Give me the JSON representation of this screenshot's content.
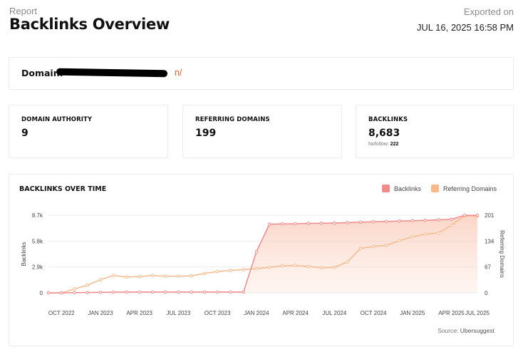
{
  "header": {
    "report_label": "Report",
    "title": "Backlinks Overview",
    "exported_label": "Exported on",
    "exported_date": "JUL 16, 2025 16:58 PM"
  },
  "domain": {
    "label": "Domain:",
    "value_visible_suffix": "n/"
  },
  "metrics": {
    "domain_authority": {
      "label": "DOMAIN AUTHORITY",
      "value": "9"
    },
    "referring_domains": {
      "label": "REFERRING DOMAINS",
      "value": "199"
    },
    "backlinks": {
      "label": "BACKLINKS",
      "value": "8,683",
      "nofollow_label": "Nofollow:",
      "nofollow_value": "222"
    }
  },
  "colors": {
    "backlinks": "#f28a8a",
    "referring_domains": "#f7b98a",
    "accent": "#e85c2c"
  },
  "chart_data": {
    "type": "line",
    "title": "BACKLINKS OVER TIME",
    "legend_placement": "top-right",
    "grid": true,
    "x_tick_labels": [
      "OCT 2022",
      "JAN 2023",
      "APR 2023",
      "JUL 2023",
      "OCT 2023",
      "JAN 2024",
      "APR 2024",
      "JUL 2024",
      "OCT 2024",
      "JAN 2025",
      "APR 2025",
      "JUL 2025"
    ],
    "x": [
      "2022-09",
      "2022-10",
      "2022-11",
      "2022-12",
      "2023-01",
      "2023-02",
      "2023-03",
      "2023-04",
      "2023-05",
      "2023-06",
      "2023-07",
      "2023-08",
      "2023-09",
      "2023-10",
      "2023-11",
      "2023-12",
      "2024-01",
      "2024-02",
      "2024-03",
      "2024-04",
      "2024-05",
      "2024-06",
      "2024-07",
      "2024-08",
      "2024-09",
      "2024-10",
      "2024-11",
      "2024-12",
      "2025-01",
      "2025-02",
      "2025-03",
      "2025-04",
      "2025-05",
      "2025-06"
    ],
    "left_axis": {
      "label": "Backlinks",
      "ticks": [
        "0",
        "2.9k",
        "5.8k",
        "8.7k"
      ],
      "tick_values": [
        0,
        2900,
        5800,
        8700
      ],
      "range": [
        0,
        8700
      ]
    },
    "right_axis": {
      "label": "Referring Domains",
      "ticks": [
        "0",
        "67",
        "134",
        "201"
      ],
      "tick_values": [
        0,
        67,
        134,
        201
      ],
      "range": [
        0,
        201
      ]
    },
    "series": [
      {
        "name": "Backlinks",
        "axis": "left",
        "values": [
          0,
          0,
          20,
          40,
          60,
          80,
          90,
          90,
          90,
          90,
          90,
          90,
          90,
          90,
          90,
          90,
          4600,
          7700,
          7720,
          7740,
          7780,
          7800,
          7820,
          7860,
          7920,
          7960,
          8000,
          8040,
          8080,
          8120,
          8180,
          8240,
          8683,
          8683
        ]
      },
      {
        "name": "Referring Domains",
        "axis": "left-scaled",
        "values": [
          0,
          0,
          10,
          20,
          34,
          45,
          41,
          42,
          45,
          43,
          43,
          44,
          50,
          55,
          58,
          60,
          63,
          66,
          70,
          71,
          68,
          65,
          66,
          80,
          115,
          120,
          123,
          135,
          145,
          152,
          155,
          175,
          199,
          199
        ]
      }
    ]
  },
  "source": {
    "label": "Source:",
    "value": "Ubersuggest"
  }
}
